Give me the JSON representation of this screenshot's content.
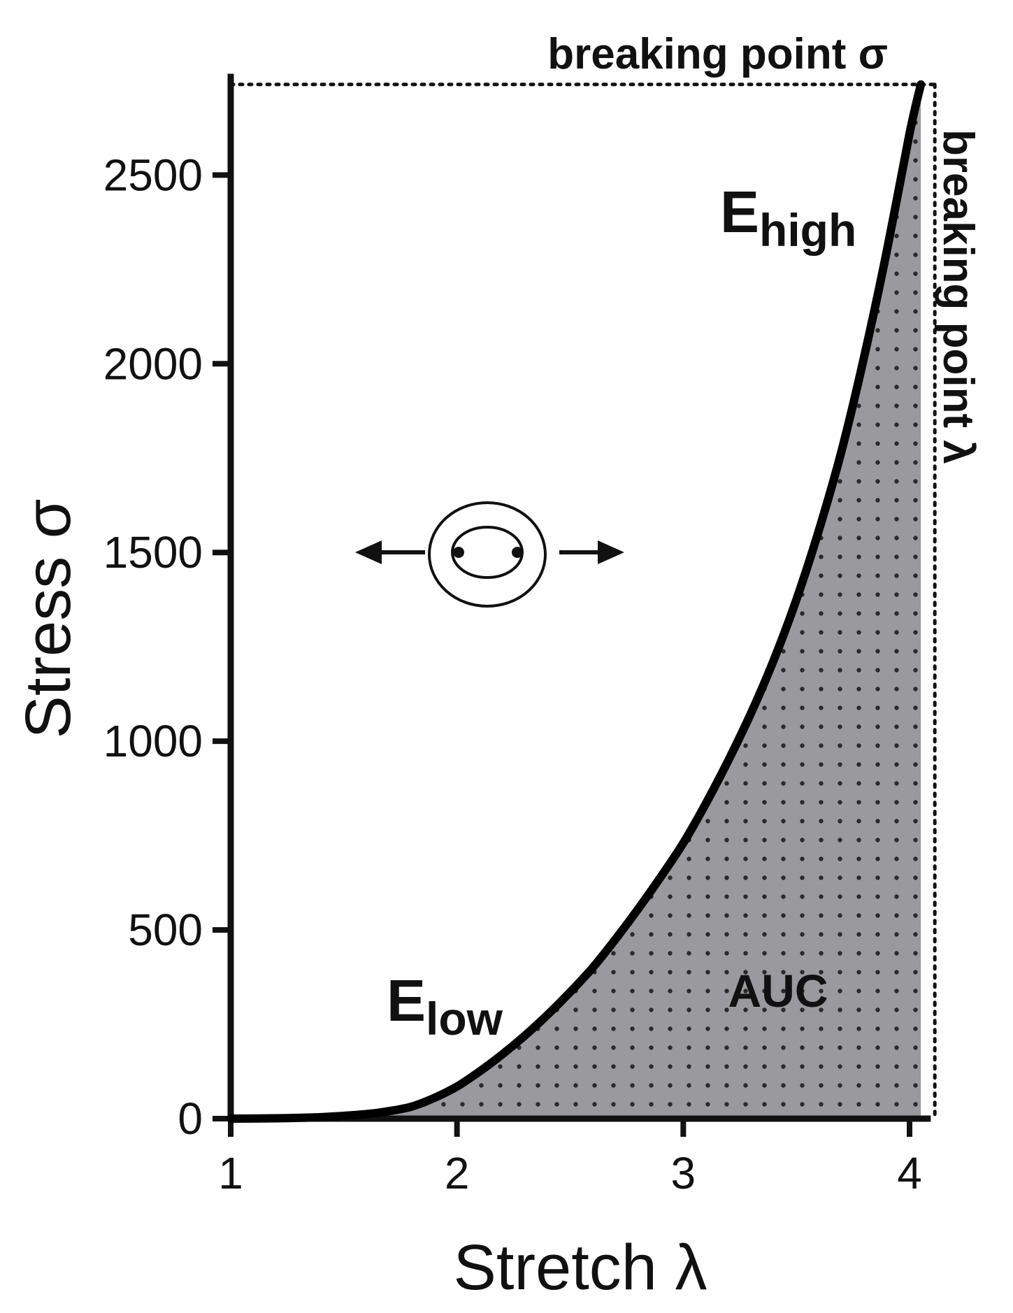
{
  "chart_data": {
    "type": "line",
    "title": "",
    "xlabel": "Stretch λ",
    "ylabel": "Stress σ",
    "xlim": [
      1,
      4.08
    ],
    "ylim": [
      0,
      2760
    ],
    "x_ticks": [
      1,
      2,
      3,
      4
    ],
    "y_ticks": [
      0,
      500,
      1000,
      1500,
      2000,
      2500
    ],
    "grid": false,
    "series": [
      {
        "x": [
          1.0,
          1.2,
          1.4,
          1.6,
          1.7,
          1.8,
          1.9,
          2.0,
          2.1,
          2.2,
          2.3,
          2.4,
          2.5,
          2.6,
          2.7,
          2.8,
          2.9,
          3.0,
          3.1,
          3.2,
          3.3,
          3.4,
          3.5,
          3.6,
          3.7,
          3.8,
          3.9,
          4.0,
          4.05
        ],
        "y": [
          0,
          1,
          4,
          12,
          20,
          32,
          55,
          85,
          125,
          170,
          220,
          275,
          335,
          400,
          475,
          555,
          640,
          730,
          835,
          950,
          1075,
          1215,
          1375,
          1560,
          1770,
          2020,
          2300,
          2610,
          2740
        ]
      }
    ],
    "breaking_point": {
      "stretch": 4.05,
      "stress": 2740
    },
    "annotations": {
      "breaking_sigma": "breaking point σ",
      "breaking_lambda": "breaking point λ",
      "e_high_main": "E",
      "e_high_sub": "high",
      "e_low_main": "E",
      "e_low_sub": "low",
      "auc": "AUC"
    },
    "colors": {
      "curve": "#000000",
      "auc_fill": "#9a9a9e",
      "auc_dots": "#2a2a2a"
    }
  }
}
